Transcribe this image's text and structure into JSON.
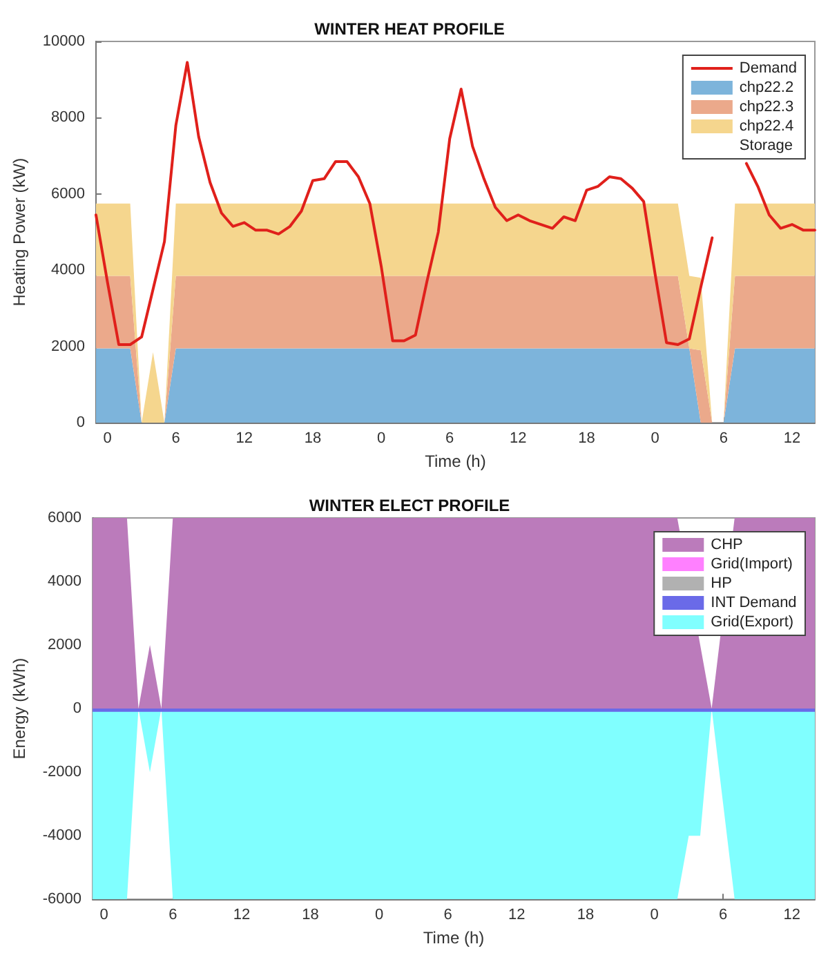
{
  "chart_data": [
    {
      "type": "area",
      "title": "WINTER HEAT PROFILE",
      "xlabel": "Time (h)",
      "ylabel": "Heating Power (kW)",
      "stacked": true,
      "legend": "top right",
      "grid": false,
      "categories": [
        null,
        "0",
        null,
        null,
        null,
        null,
        null,
        "6",
        null,
        null,
        null,
        null,
        null,
        "12",
        null,
        null,
        null,
        null,
        null,
        "18",
        null,
        null,
        null,
        null,
        null,
        "0",
        null,
        null,
        null,
        null,
        null,
        "6",
        null,
        null,
        null,
        null,
        null,
        "12",
        null,
        null,
        null,
        null,
        null,
        "18",
        null,
        null,
        null,
        null,
        null,
        "0",
        null,
        null,
        null,
        null,
        null,
        "6",
        null,
        null,
        null,
        null,
        null,
        "12",
        null,
        null
      ],
      "ylim": [
        0,
        10000
      ],
      "yticks": [
        0,
        2000,
        4000,
        6000,
        8000,
        10000
      ],
      "series": [
        {
          "name": "Demand",
          "type": "line",
          "color": "#e0201b",
          "values": [
            5450,
            3700,
            2050,
            2050,
            2250,
            3500,
            4750,
            7800,
            9450,
            7500,
            6300,
            5500,
            5150,
            5250,
            5050,
            5050,
            4950,
            5150,
            5550,
            6350,
            6400,
            6850,
            6850,
            6450,
            5750,
            4100,
            2150,
            2150,
            2300,
            3700,
            5000,
            7450,
            8750,
            7250,
            6400,
            5650,
            5300,
            5450,
            5300,
            5200,
            5100,
            5400,
            5300,
            6100,
            6200,
            6450,
            6400,
            6150,
            5800,
            3900,
            2100,
            2050,
            2200,
            3550,
            4850,
            null,
            null,
            6800,
            6200,
            5450,
            5100,
            5200,
            5050,
            5050
          ]
        },
        {
          "name": "chp22.2",
          "color": "#7db4db",
          "values": [
            1950,
            1950,
            1950,
            1950,
            0,
            0,
            0,
            1950,
            1950,
            1950,
            1950,
            1950,
            1950,
            1950,
            1950,
            1950,
            1950,
            1950,
            1950,
            1950,
            1950,
            1950,
            1950,
            1950,
            1950,
            1950,
            1950,
            1950,
            1950,
            1950,
            1950,
            1950,
            1950,
            1950,
            1950,
            1950,
            1950,
            1950,
            1950,
            1950,
            1950,
            1950,
            1950,
            1950,
            1950,
            1950,
            1950,
            1950,
            1950,
            1950,
            1950,
            1950,
            1950,
            0,
            0,
            0,
            1950,
            1950,
            1950,
            1950,
            1950,
            1950,
            1950,
            1950
          ]
        },
        {
          "name": "chp22.3",
          "color": "#eba98b",
          "values": [
            1900,
            1900,
            1900,
            1900,
            0,
            0,
            0,
            1900,
            1900,
            1900,
            1900,
            1900,
            1900,
            1900,
            1900,
            1900,
            1900,
            1900,
            1900,
            1900,
            1900,
            1900,
            1900,
            1900,
            1900,
            1900,
            1900,
            1900,
            1900,
            1900,
            1900,
            1900,
            1900,
            1900,
            1900,
            1900,
            1900,
            1900,
            1900,
            1900,
            1900,
            1900,
            1900,
            1900,
            1900,
            1900,
            1900,
            1900,
            1900,
            1900,
            1900,
            1900,
            0,
            1900,
            0,
            0,
            1900,
            1900,
            1900,
            1900,
            1900,
            1900,
            1900,
            1900
          ]
        },
        {
          "name": "chp22.4",
          "color": "#f5d68e",
          "values": [
            1900,
            1900,
            1900,
            1900,
            0,
            1850,
            0,
            1900,
            1900,
            1900,
            1900,
            1900,
            1900,
            1900,
            1900,
            1900,
            1900,
            1900,
            1900,
            1900,
            1900,
            1900,
            1900,
            1900,
            1900,
            1900,
            1900,
            1900,
            1900,
            1900,
            1900,
            1900,
            1900,
            1900,
            1900,
            1900,
            1900,
            1900,
            1900,
            1900,
            1900,
            1900,
            1900,
            1900,
            1900,
            1900,
            1900,
            1900,
            1900,
            1900,
            1900,
            1900,
            1900,
            1900,
            0,
            0,
            1900,
            1900,
            1900,
            1900,
            1900,
            1900,
            1900,
            1900
          ]
        },
        {
          "name": "Storage",
          "values": [
            null,
            null,
            null,
            null,
            null,
            null,
            null,
            null,
            null,
            null,
            null,
            null,
            null,
            null,
            null,
            null,
            null,
            null,
            null,
            null,
            null,
            null,
            null,
            null,
            null,
            null,
            null,
            null,
            null,
            null,
            null,
            null,
            null,
            null,
            null,
            null,
            null,
            null,
            null,
            null,
            null,
            null,
            null,
            null,
            null,
            null,
            null,
            null,
            null,
            null,
            null,
            null,
            null,
            null,
            null,
            null,
            null,
            null,
            null,
            null,
            null,
            null,
            null,
            null
          ]
        }
      ]
    },
    {
      "type": "area",
      "title": "WINTER ELECT PROFILE",
      "xlabel": "Time (h)",
      "ylabel": "Energy (kWh)",
      "legend": "top right",
      "grid": false,
      "categories": [
        null,
        "0",
        null,
        null,
        null,
        null,
        null,
        "6",
        null,
        null,
        null,
        null,
        null,
        "12",
        null,
        null,
        null,
        null,
        null,
        "18",
        null,
        null,
        null,
        null,
        null,
        "0",
        null,
        null,
        null,
        null,
        null,
        "6",
        null,
        null,
        null,
        null,
        null,
        "12",
        null,
        null,
        null,
        null,
        null,
        "18",
        null,
        null,
        null,
        null,
        null,
        "0",
        null,
        null,
        null,
        null,
        null,
        "6",
        null,
        null,
        null,
        null,
        null,
        "12",
        null,
        null
      ],
      "ylim": [
        -6000,
        6000
      ],
      "yticks": [
        -6000,
        -4000,
        -2000,
        0,
        2000,
        4000,
        6000
      ],
      "series": [
        {
          "name": "CHP",
          "color": "#bb7bbb",
          "values": [
            6000,
            6000,
            6000,
            6000,
            0,
            2000,
            0,
            6000,
            6000,
            6000,
            6000,
            6000,
            6000,
            6000,
            6000,
            6000,
            6000,
            6000,
            6000,
            6000,
            6000,
            6000,
            6000,
            6000,
            6000,
            6000,
            6000,
            6000,
            6000,
            6000,
            6000,
            6000,
            6000,
            6000,
            6000,
            6000,
            6000,
            6000,
            6000,
            6000,
            6000,
            6000,
            6000,
            6000,
            6000,
            6000,
            6000,
            6000,
            6000,
            6000,
            6000,
            6000,
            null,
            2000,
            0,
            null,
            6000,
            6000,
            6000,
            6000,
            6000,
            6000,
            6000,
            6000
          ]
        },
        {
          "name": "Grid(Import)",
          "color": "#ff80ff",
          "values": [
            null,
            null,
            null,
            null,
            null,
            null,
            null,
            null,
            null,
            null,
            null,
            null,
            null,
            null,
            null,
            null,
            null,
            null,
            null,
            null,
            null,
            null,
            null,
            null,
            null,
            null,
            null,
            null,
            null,
            null,
            null,
            null,
            null,
            null,
            null,
            null,
            null,
            null,
            null,
            null,
            null,
            null,
            null,
            null,
            null,
            null,
            null,
            null,
            null,
            null,
            null,
            null,
            null,
            null,
            null,
            null,
            null,
            null,
            null,
            null,
            null,
            null,
            null,
            null
          ]
        },
        {
          "name": "HP",
          "color": "#b1b1b1",
          "values": [
            null,
            null,
            null,
            null,
            null,
            null,
            null,
            null,
            null,
            null,
            null,
            null,
            null,
            null,
            null,
            null,
            null,
            null,
            null,
            null,
            null,
            null,
            null,
            null,
            null,
            null,
            null,
            null,
            null,
            null,
            null,
            null,
            null,
            null,
            null,
            null,
            null,
            null,
            null,
            null,
            null,
            null,
            null,
            null,
            null,
            null,
            null,
            null,
            null,
            null,
            null,
            null,
            null,
            null,
            null,
            null,
            null,
            null,
            null,
            null,
            null,
            null,
            null,
            null
          ]
        },
        {
          "name": "INT Demand",
          "color": "#6a6ae8",
          "values": [
            -100,
            -100,
            -100,
            -100,
            -100,
            -100,
            -100,
            -100,
            -100,
            -100,
            -100,
            -100,
            -100,
            -100,
            -100,
            -100,
            -100,
            -100,
            -100,
            -100,
            -100,
            -100,
            -100,
            -100,
            -100,
            -100,
            -100,
            -100,
            -100,
            -100,
            -100,
            -100,
            -100,
            -100,
            -100,
            -100,
            -100,
            -100,
            -100,
            -100,
            -100,
            -100,
            -100,
            -100,
            -100,
            -100,
            -100,
            -100,
            -100,
            -100,
            -100,
            -100,
            -100,
            -100,
            -100,
            -100,
            -100,
            -100,
            -100,
            -100,
            -100,
            -100,
            -100,
            -100
          ]
        },
        {
          "name": "Grid(Export)",
          "color": "#80ffff",
          "values": [
            -6000,
            -6000,
            -6000,
            -6000,
            0,
            -2000,
            0,
            -6000,
            -6000,
            -6000,
            -6000,
            -6000,
            -6000,
            -6000,
            -6000,
            -6000,
            -6000,
            -6000,
            -6000,
            -6000,
            -6000,
            -6000,
            -6000,
            -6000,
            -6000,
            -6000,
            -6000,
            -6000,
            -6000,
            -6000,
            -6000,
            -6000,
            -6000,
            -6000,
            -6000,
            -6000,
            -6000,
            -6000,
            -6000,
            -6000,
            -6000,
            -6000,
            -6000,
            -6000,
            -6000,
            -6000,
            -6000,
            -6000,
            -6000,
            -6000,
            -6000,
            -6000,
            -4000,
            -4000,
            0,
            -3000,
            -6000,
            -6000,
            -6000,
            -6000,
            -6000,
            -6000,
            -6000,
            -6000
          ]
        }
      ]
    }
  ]
}
